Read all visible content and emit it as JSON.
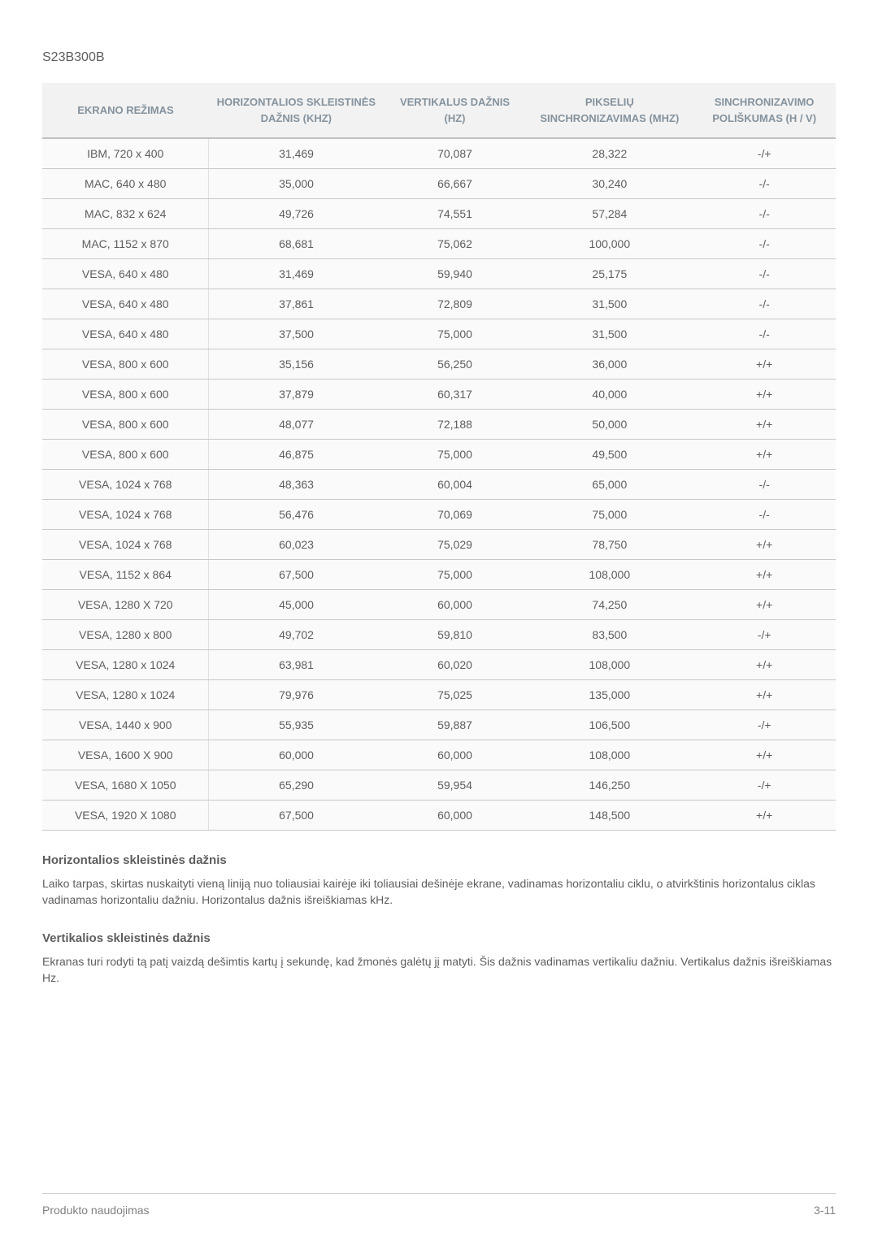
{
  "model": "S23B300B",
  "table": {
    "headers": [
      "EKRANO REŽIMAS",
      "HORIZONTALIOS SKLEISTINĖS DAŽNIS (KHZ)",
      "VERTIKALUS DAŽNIS (HZ)",
      "PIKSELIŲ SINCHRONIZAVIMAS (MHZ)",
      "SINCHRONIZAVIMO POLIŠKUMAS (H / V)"
    ],
    "col_widths": [
      "21%",
      "22%",
      "18%",
      "21%",
      "18%"
    ],
    "header_bg": "#f2f2f2",
    "header_color": "#84929d",
    "row_bg": "#fafafa",
    "cell_color": "#5e5e5e",
    "border_color": "#c8c8c8",
    "header_border_bottom": "#c0c0c0",
    "rows": [
      [
        "IBM, 720 x 400",
        "31,469",
        "70,087",
        "28,322",
        "-/+"
      ],
      [
        "MAC, 640 x 480",
        "35,000",
        "66,667",
        "30,240",
        "-/-"
      ],
      [
        "MAC, 832 x 624",
        "49,726",
        "74,551",
        "57,284",
        "-/-"
      ],
      [
        "MAC, 1152 x 870",
        "68,681",
        "75,062",
        "100,000",
        "-/-"
      ],
      [
        "VESA, 640 x 480",
        "31,469",
        "59,940",
        "25,175",
        "-/-"
      ],
      [
        "VESA, 640 x 480",
        "37,861",
        "72,809",
        "31,500",
        "-/-"
      ],
      [
        "VESA, 640 x 480",
        "37,500",
        "75,000",
        "31,500",
        "-/-"
      ],
      [
        "VESA, 800 x 600",
        "35,156",
        "56,250",
        "36,000",
        "+/+"
      ],
      [
        "VESA, 800 x 600",
        "37,879",
        "60,317",
        "40,000",
        "+/+"
      ],
      [
        "VESA, 800 x 600",
        "48,077",
        "72,188",
        "50,000",
        "+/+"
      ],
      [
        "VESA, 800 x 600",
        "46,875",
        "75,000",
        "49,500",
        "+/+"
      ],
      [
        "VESA, 1024 x 768",
        "48,363",
        "60,004",
        "65,000",
        "-/-"
      ],
      [
        "VESA, 1024 x 768",
        "56,476",
        "70,069",
        "75,000",
        "-/-"
      ],
      [
        "VESA, 1024 x 768",
        "60,023",
        "75,029",
        "78,750",
        "+/+"
      ],
      [
        "VESA, 1152 x 864",
        "67,500",
        "75,000",
        "108,000",
        "+/+"
      ],
      [
        "VESA, 1280 X 720",
        "45,000",
        "60,000",
        "74,250",
        "+/+"
      ],
      [
        "VESA, 1280 x 800",
        "49,702",
        "59,810",
        "83,500",
        "-/+"
      ],
      [
        "VESA, 1280 x 1024",
        "63,981",
        "60,020",
        "108,000",
        "+/+"
      ],
      [
        "VESA, 1280 x 1024",
        "79,976",
        "75,025",
        "135,000",
        "+/+"
      ],
      [
        "VESA, 1440 x 900",
        "55,935",
        "59,887",
        "106,500",
        "-/+"
      ],
      [
        "VESA, 1600 X 900",
        "60,000",
        "60,000",
        "108,000",
        "+/+"
      ],
      [
        "VESA, 1680 X 1050",
        "65,290",
        "59,954",
        "146,250",
        "-/+"
      ],
      [
        "VESA, 1920 X 1080",
        "67,500",
        "60,000",
        "148,500",
        "+/+"
      ]
    ]
  },
  "sections": {
    "hTitle": "Horizontalios skleistinės dažnis",
    "hBody": "Laiko tarpas, skirtas nuskaityti vieną liniją nuo toliausiai kairėje iki toliausiai dešinėje ekrane, vadinamas horizontaliu ciklu, o atvirkštinis horizontalus ciklas vadinamas horizontaliu dažniu. Horizontalus dažnis išreiškiamas kHz.",
    "vTitle": "Vertikalios skleistinės dažnis",
    "vBody": "Ekranas turi rodyti tą patį vaizdą dešimtis kartų į sekundę, kad žmonės galėtų jį matyti. Šis dažnis vadinamas vertikaliu dažniu. Vertikalus dažnis išreiškiamas Hz."
  },
  "footer": {
    "left": "Produkto naudojimas",
    "right": "3-11"
  }
}
